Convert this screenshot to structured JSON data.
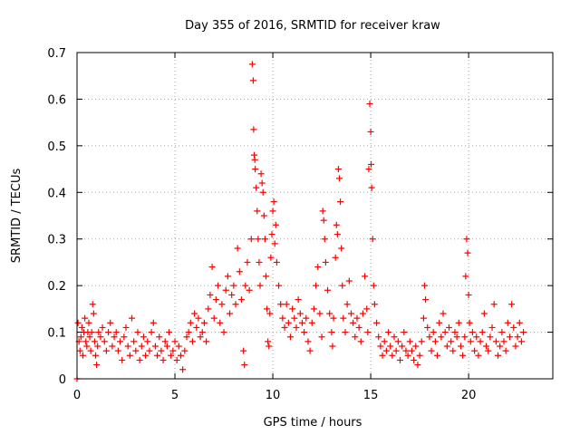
{
  "chart_data": {
    "type": "scatter",
    "title": "Day 355 of 2016, SRMTID for receiver kraw",
    "xlabel": "GPS time / hours",
    "ylabel": "SRMTID / TECUs",
    "xlim": [
      0,
      24.3
    ],
    "ylim": [
      0,
      0.7
    ],
    "x_ticks": [
      0,
      5,
      10,
      15,
      20
    ],
    "y_ticks": [
      0,
      0.1,
      0.2,
      0.3,
      0.4,
      0.5,
      0.6,
      0.7
    ],
    "x_tick_labels": [
      "0",
      "5",
      "10",
      "15",
      "20"
    ],
    "y_tick_labels": [
      "0",
      "0.1",
      "0.2",
      "0.3",
      "0.4",
      "0.5",
      "0.6",
      "0.7"
    ],
    "grid": true,
    "marker": "plus",
    "color": "#ff0000",
    "series": [
      {
        "name": "SRMTID",
        "points": [
          [
            0.0,
            0.0
          ],
          [
            0.05,
            0.12
          ],
          [
            0.1,
            0.08
          ],
          [
            0.15,
            0.06
          ],
          [
            0.2,
            0.09
          ],
          [
            0.25,
            0.11
          ],
          [
            0.3,
            0.05
          ],
          [
            0.35,
            0.1
          ],
          [
            0.4,
            0.13
          ],
          [
            0.45,
            0.08
          ],
          [
            0.5,
            0.07
          ],
          [
            0.55,
            0.1
          ],
          [
            0.6,
            0.12
          ],
          [
            0.65,
            0.09
          ],
          [
            0.7,
            0.06
          ],
          [
            0.75,
            0.1
          ],
          [
            0.8,
            0.16
          ],
          [
            0.85,
            0.14
          ],
          [
            0.9,
            0.08
          ],
          [
            0.95,
            0.05
          ],
          [
            1.0,
            0.03
          ],
          [
            1.05,
            0.07
          ],
          [
            1.1,
            0.1
          ],
          [
            1.2,
            0.09
          ],
          [
            1.3,
            0.11
          ],
          [
            1.4,
            0.08
          ],
          [
            1.5,
            0.06
          ],
          [
            1.6,
            0.1
          ],
          [
            1.7,
            0.12
          ],
          [
            1.8,
            0.07
          ],
          [
            1.9,
            0.09
          ],
          [
            2.0,
            0.1
          ],
          [
            2.1,
            0.06
          ],
          [
            2.2,
            0.08
          ],
          [
            2.3,
            0.04
          ],
          [
            2.4,
            0.09
          ],
          [
            2.5,
            0.11
          ],
          [
            2.6,
            0.07
          ],
          [
            2.7,
            0.05
          ],
          [
            2.8,
            0.13
          ],
          [
            2.9,
            0.08
          ],
          [
            3.0,
            0.06
          ],
          [
            3.1,
            0.1
          ],
          [
            3.2,
            0.04
          ],
          [
            3.3,
            0.07
          ],
          [
            3.4,
            0.09
          ],
          [
            3.5,
            0.05
          ],
          [
            3.6,
            0.08
          ],
          [
            3.7,
            0.06
          ],
          [
            3.8,
            0.1
          ],
          [
            3.9,
            0.12
          ],
          [
            4.0,
            0.07
          ],
          [
            4.1,
            0.05
          ],
          [
            4.2,
            0.09
          ],
          [
            4.3,
            0.06
          ],
          [
            4.4,
            0.04
          ],
          [
            4.5,
            0.08
          ],
          [
            4.6,
            0.07
          ],
          [
            4.7,
            0.1
          ],
          [
            4.8,
            0.05
          ],
          [
            4.9,
            0.06
          ],
          [
            5.0,
            0.08
          ],
          [
            5.1,
            0.04
          ],
          [
            5.2,
            0.07
          ],
          [
            5.3,
            0.05
          ],
          [
            5.4,
            0.02
          ],
          [
            5.5,
            0.06
          ],
          [
            5.6,
            0.09
          ],
          [
            5.7,
            0.1
          ],
          [
            5.8,
            0.12
          ],
          [
            5.9,
            0.08
          ],
          [
            6.0,
            0.14
          ],
          [
            6.1,
            0.11
          ],
          [
            6.2,
            0.13
          ],
          [
            6.3,
            0.09
          ],
          [
            6.4,
            0.1
          ],
          [
            6.5,
            0.12
          ],
          [
            6.6,
            0.08
          ],
          [
            6.7,
            0.15
          ],
          [
            6.8,
            0.18
          ],
          [
            6.9,
            0.24
          ],
          [
            7.0,
            0.13
          ],
          [
            7.1,
            0.17
          ],
          [
            7.2,
            0.2
          ],
          [
            7.3,
            0.12
          ],
          [
            7.4,
            0.16
          ],
          [
            7.5,
            0.1
          ],
          [
            7.6,
            0.19
          ],
          [
            7.7,
            0.22
          ],
          [
            7.8,
            0.14
          ],
          [
            7.9,
            0.18
          ],
          [
            8.0,
            0.2
          ],
          [
            8.1,
            0.16
          ],
          [
            8.2,
            0.28
          ],
          [
            8.3,
            0.23
          ],
          [
            8.4,
            0.17
          ],
          [
            8.5,
            0.06
          ],
          [
            8.55,
            0.03
          ],
          [
            8.6,
            0.2
          ],
          [
            8.7,
            0.25
          ],
          [
            8.8,
            0.19
          ],
          [
            8.9,
            0.3
          ],
          [
            8.95,
            0.675
          ],
          [
            9.0,
            0.64
          ],
          [
            9.02,
            0.535
          ],
          [
            9.05,
            0.48
          ],
          [
            9.08,
            0.47
          ],
          [
            9.1,
            0.45
          ],
          [
            9.15,
            0.41
          ],
          [
            9.2,
            0.36
          ],
          [
            9.25,
            0.3
          ],
          [
            9.3,
            0.25
          ],
          [
            9.35,
            0.2
          ],
          [
            9.4,
            0.44
          ],
          [
            9.45,
            0.42
          ],
          [
            9.5,
            0.4
          ],
          [
            9.55,
            0.35
          ],
          [
            9.6,
            0.3
          ],
          [
            9.65,
            0.22
          ],
          [
            9.7,
            0.15
          ],
          [
            9.75,
            0.08
          ],
          [
            9.8,
            0.07
          ],
          [
            9.85,
            0.14
          ],
          [
            9.9,
            0.26
          ],
          [
            9.95,
            0.31
          ],
          [
            10.0,
            0.36
          ],
          [
            10.05,
            0.38
          ],
          [
            10.1,
            0.29
          ],
          [
            10.15,
            0.33
          ],
          [
            10.2,
            0.25
          ],
          [
            10.3,
            0.2
          ],
          [
            10.4,
            0.16
          ],
          [
            10.5,
            0.13
          ],
          [
            10.6,
            0.11
          ],
          [
            10.7,
            0.16
          ],
          [
            10.8,
            0.12
          ],
          [
            10.9,
            0.09
          ],
          [
            11.0,
            0.15
          ],
          [
            11.1,
            0.13
          ],
          [
            11.2,
            0.11
          ],
          [
            11.3,
            0.17
          ],
          [
            11.4,
            0.14
          ],
          [
            11.5,
            0.12
          ],
          [
            11.6,
            0.1
          ],
          [
            11.7,
            0.13
          ],
          [
            11.8,
            0.08
          ],
          [
            11.9,
            0.06
          ],
          [
            12.0,
            0.12
          ],
          [
            12.1,
            0.15
          ],
          [
            12.2,
            0.2
          ],
          [
            12.3,
            0.24
          ],
          [
            12.4,
            0.14
          ],
          [
            12.5,
            0.09
          ],
          [
            12.55,
            0.36
          ],
          [
            12.6,
            0.34
          ],
          [
            12.65,
            0.3
          ],
          [
            12.7,
            0.25
          ],
          [
            12.8,
            0.19
          ],
          [
            12.9,
            0.14
          ],
          [
            13.0,
            0.1
          ],
          [
            13.05,
            0.07
          ],
          [
            13.1,
            0.13
          ],
          [
            13.2,
            0.26
          ],
          [
            13.25,
            0.33
          ],
          [
            13.3,
            0.31
          ],
          [
            13.35,
            0.45
          ],
          [
            13.4,
            0.43
          ],
          [
            13.45,
            0.38
          ],
          [
            13.5,
            0.28
          ],
          [
            13.55,
            0.2
          ],
          [
            13.6,
            0.13
          ],
          [
            13.7,
            0.1
          ],
          [
            13.8,
            0.16
          ],
          [
            13.9,
            0.21
          ],
          [
            14.0,
            0.14
          ],
          [
            14.1,
            0.12
          ],
          [
            14.2,
            0.09
          ],
          [
            14.3,
            0.13
          ],
          [
            14.4,
            0.11
          ],
          [
            14.5,
            0.08
          ],
          [
            14.6,
            0.14
          ],
          [
            14.7,
            0.22
          ],
          [
            14.8,
            0.15
          ],
          [
            14.85,
            0.1
          ],
          [
            14.9,
            0.45
          ],
          [
            14.95,
            0.59
          ],
          [
            15.0,
            0.53
          ],
          [
            15.02,
            0.46
          ],
          [
            15.05,
            0.41
          ],
          [
            15.1,
            0.3
          ],
          [
            15.15,
            0.2
          ],
          [
            15.2,
            0.16
          ],
          [
            15.3,
            0.12
          ],
          [
            15.4,
            0.09
          ],
          [
            15.5,
            0.07
          ],
          [
            15.6,
            0.05
          ],
          [
            15.7,
            0.08
          ],
          [
            15.8,
            0.06
          ],
          [
            15.9,
            0.1
          ],
          [
            16.0,
            0.07
          ],
          [
            16.1,
            0.05
          ],
          [
            16.2,
            0.09
          ],
          [
            16.3,
            0.06
          ],
          [
            16.4,
            0.08
          ],
          [
            16.5,
            0.04
          ],
          [
            16.6,
            0.07
          ],
          [
            16.7,
            0.1
          ],
          [
            16.8,
            0.06
          ],
          [
            16.9,
            0.05
          ],
          [
            17.0,
            0.08
          ],
          [
            17.1,
            0.06
          ],
          [
            17.2,
            0.04
          ],
          [
            17.3,
            0.07
          ],
          [
            17.4,
            0.03
          ],
          [
            17.5,
            0.05
          ],
          [
            17.6,
            0.08
          ],
          [
            17.7,
            0.13
          ],
          [
            17.75,
            0.2
          ],
          [
            17.8,
            0.17
          ],
          [
            17.9,
            0.11
          ],
          [
            18.0,
            0.09
          ],
          [
            18.1,
            0.06
          ],
          [
            18.2,
            0.1
          ],
          [
            18.3,
            0.08
          ],
          [
            18.4,
            0.05
          ],
          [
            18.5,
            0.12
          ],
          [
            18.6,
            0.09
          ],
          [
            18.7,
            0.14
          ],
          [
            18.8,
            0.1
          ],
          [
            18.9,
            0.07
          ],
          [
            19.0,
            0.11
          ],
          [
            19.1,
            0.08
          ],
          [
            19.2,
            0.06
          ],
          [
            19.3,
            0.1
          ],
          [
            19.4,
            0.09
          ],
          [
            19.5,
            0.12
          ],
          [
            19.6,
            0.07
          ],
          [
            19.7,
            0.05
          ],
          [
            19.8,
            0.09
          ],
          [
            19.85,
            0.22
          ],
          [
            19.9,
            0.3
          ],
          [
            19.95,
            0.27
          ],
          [
            20.0,
            0.18
          ],
          [
            20.05,
            0.12
          ],
          [
            20.1,
            0.08
          ],
          [
            20.2,
            0.1
          ],
          [
            20.3,
            0.06
          ],
          [
            20.4,
            0.09
          ],
          [
            20.5,
            0.05
          ],
          [
            20.6,
            0.08
          ],
          [
            20.7,
            0.1
          ],
          [
            20.8,
            0.14
          ],
          [
            20.9,
            0.07
          ],
          [
            21.0,
            0.06
          ],
          [
            21.1,
            0.09
          ],
          [
            21.2,
            0.11
          ],
          [
            21.3,
            0.16
          ],
          [
            21.4,
            0.08
          ],
          [
            21.5,
            0.05
          ],
          [
            21.6,
            0.07
          ],
          [
            21.7,
            0.1
          ],
          [
            21.8,
            0.08
          ],
          [
            21.9,
            0.06
          ],
          [
            22.0,
            0.12
          ],
          [
            22.1,
            0.09
          ],
          [
            22.2,
            0.16
          ],
          [
            22.3,
            0.11
          ],
          [
            22.4,
            0.07
          ],
          [
            22.5,
            0.09
          ],
          [
            22.6,
            0.12
          ],
          [
            22.7,
            0.08
          ],
          [
            22.8,
            0.1
          ]
        ]
      }
    ]
  }
}
